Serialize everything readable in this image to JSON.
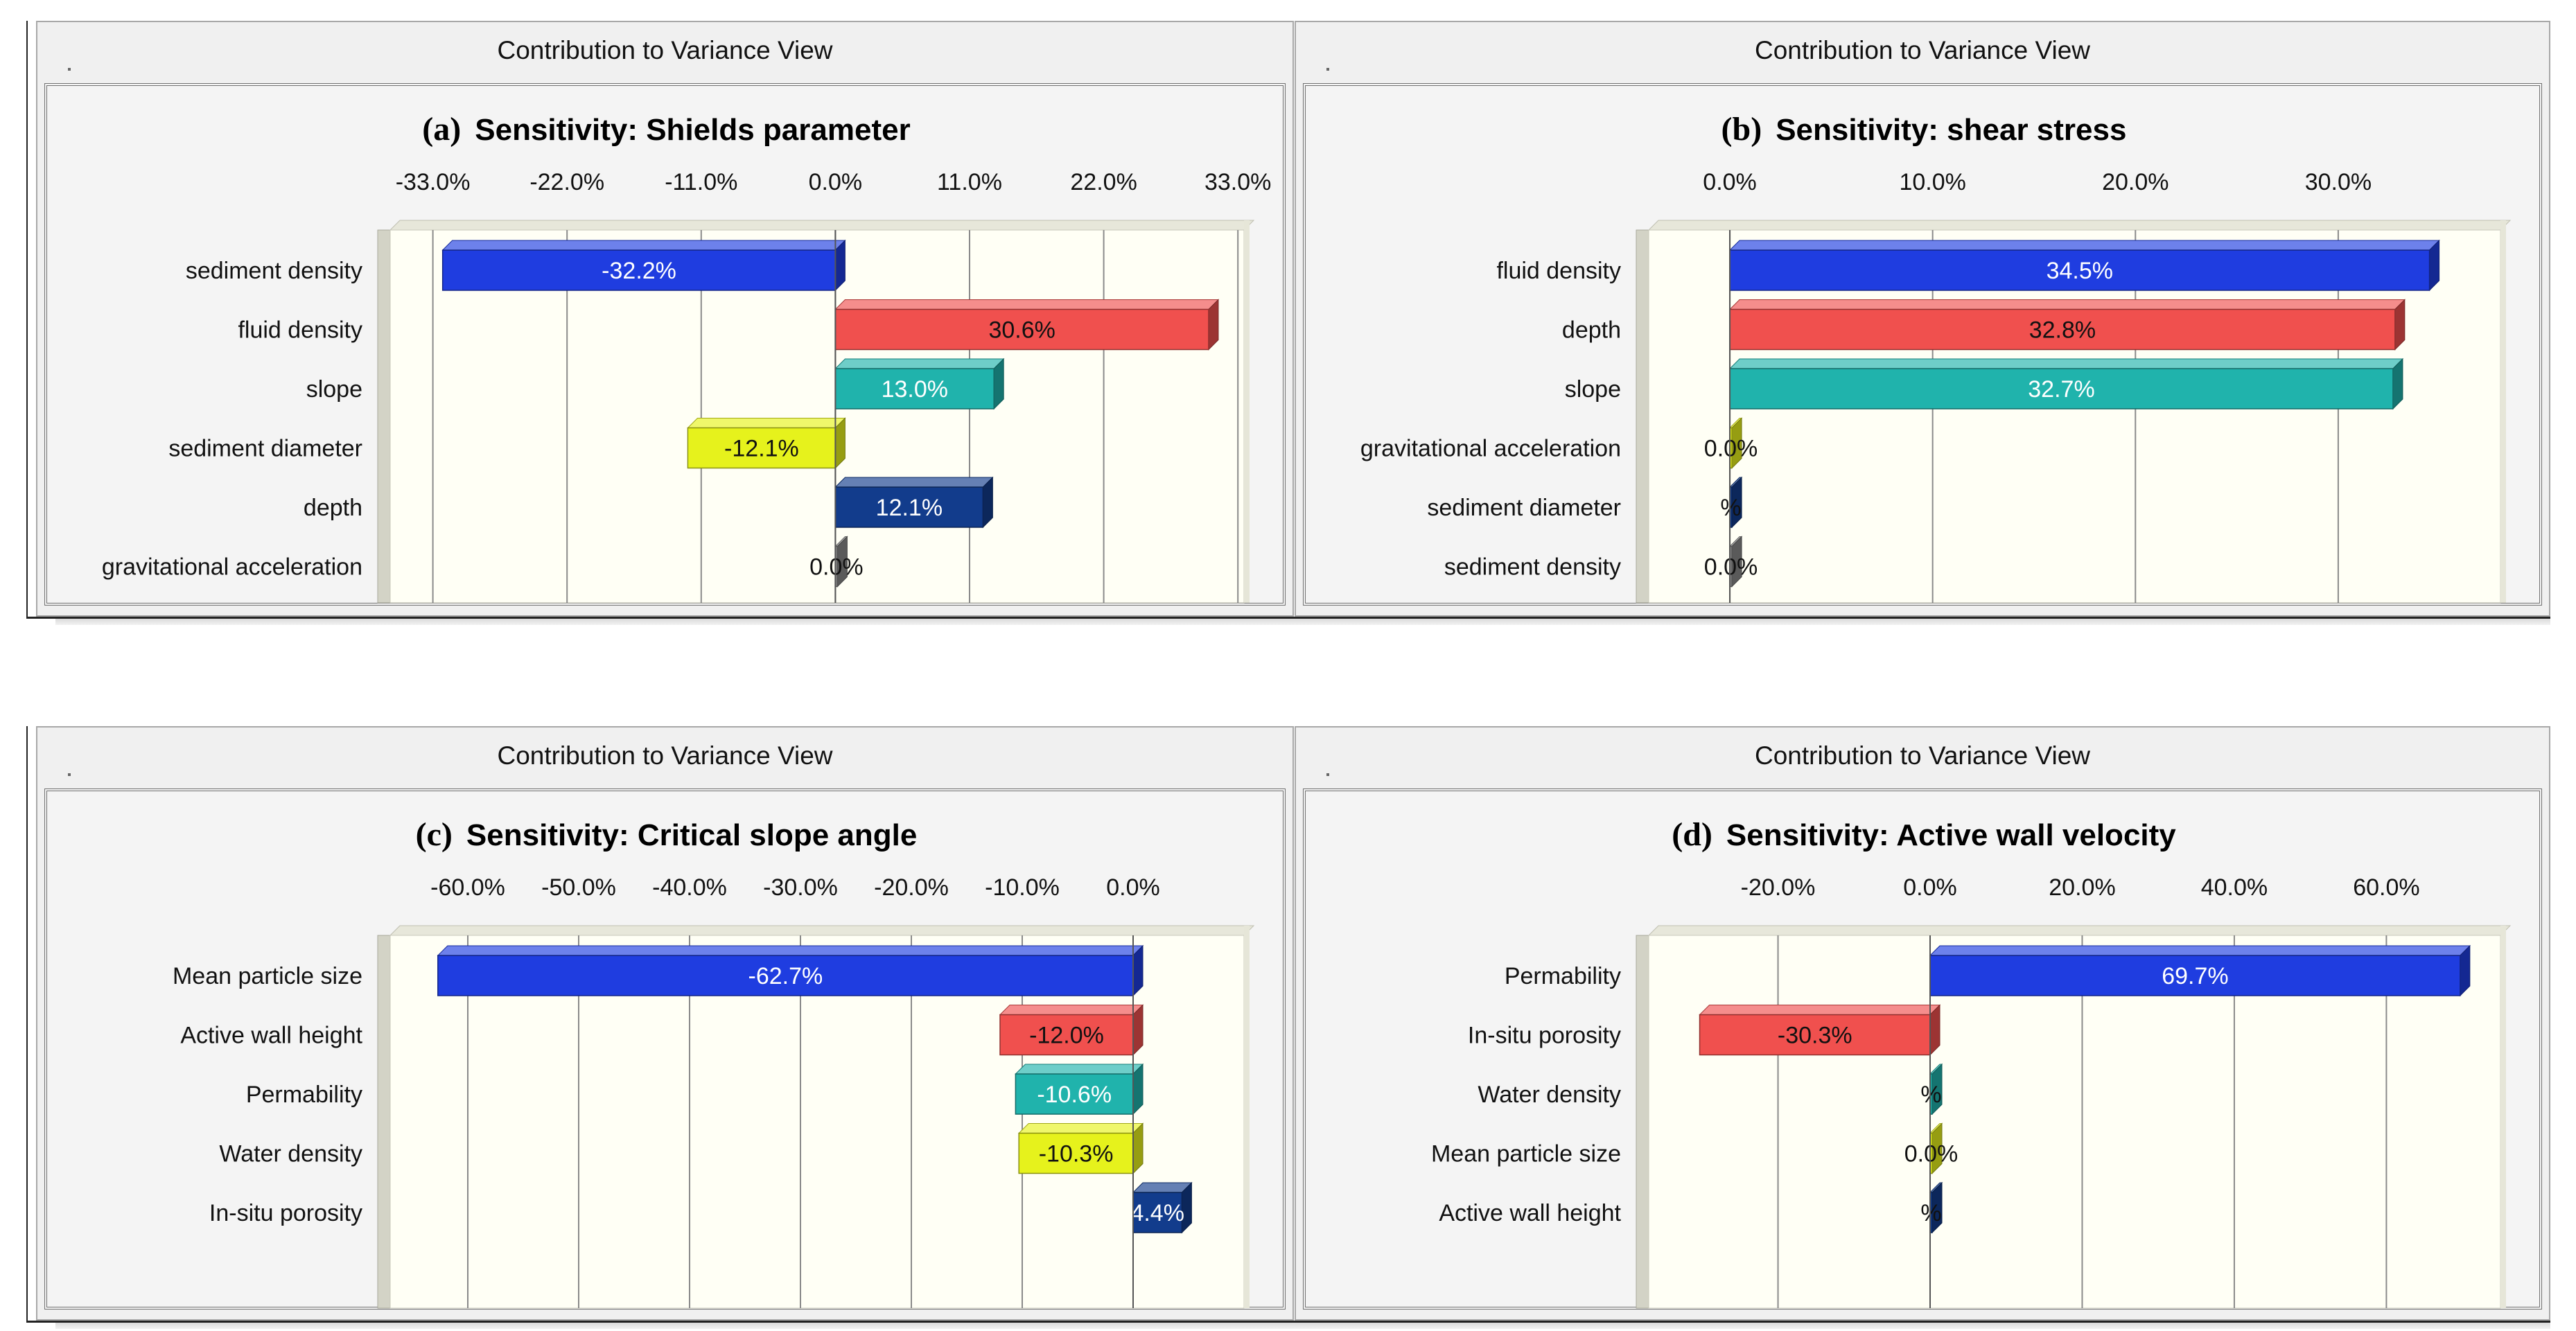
{
  "window_title": "Contribution to Variance View",
  "colors": {
    "blue": "#1f3de0",
    "red": "#f0504e",
    "teal": "#20b3ac",
    "yellow": "#e6f21c",
    "navy": "#123c8c",
    "gray": "#8a8a8a",
    "plot_bg": "#fffff5"
  },
  "chart_data": [
    {
      "type": "bar",
      "orientation": "horizontal",
      "panel_letter": "(a)",
      "title": "Sensitivity: Shields parameter",
      "xlim": [
        -36.5,
        33.5
      ],
      "ticks": [
        -33,
        -22,
        -11,
        0,
        11,
        22,
        33
      ],
      "tick_labels": [
        "-33.0%",
        "-22.0%",
        "-11.0%",
        "0.0%",
        "11.0%",
        "22.0%",
        "33.0%"
      ],
      "categories": [
        "sediment density",
        "fluid density",
        "slope",
        "sediment diameter",
        "depth",
        "gravitational acceleration"
      ],
      "values": [
        -32.2,
        30.6,
        13.0,
        -12.1,
        12.1,
        0.0
      ],
      "data_labels": [
        "-32.2%",
        "30.6%",
        "13.0%",
        "-12.1%",
        "12.1%",
        "0.0%"
      ],
      "bar_colors": [
        "blue",
        "red",
        "teal",
        "yellow",
        "navy",
        "gray"
      ]
    },
    {
      "type": "bar",
      "orientation": "horizontal",
      "panel_letter": "(b)",
      "title": "Sensitivity: shear stress",
      "xlim": [
        -4,
        38
      ],
      "ticks": [
        0,
        10,
        20,
        30
      ],
      "tick_labels": [
        "0.0%",
        "10.0%",
        "20.0%",
        "30.0%"
      ],
      "categories": [
        "fluid density",
        "depth",
        "slope",
        "gravitational acceleration",
        "sediment diameter",
        "sediment density"
      ],
      "values": [
        34.5,
        32.8,
        32.7,
        0.0,
        0.0,
        0.0
      ],
      "data_labels": [
        "34.5%",
        "32.8%",
        "32.7%",
        "0.0%",
        "%",
        "0.0%"
      ],
      "bar_colors": [
        "blue",
        "red",
        "teal",
        "yellow",
        "navy",
        "gray"
      ]
    },
    {
      "type": "bar",
      "orientation": "horizontal",
      "panel_letter": "(c)",
      "title": "Sensitivity: Critical slope angle",
      "xlim": [
        -67,
        10
      ],
      "ticks": [
        -60,
        -50,
        -40,
        -30,
        -20,
        -10,
        0
      ],
      "tick_labels": [
        "-60.0%",
        "-50.0%",
        "-40.0%",
        "-30.0%",
        "-20.0%",
        "-10.0%",
        "0.0%"
      ],
      "categories": [
        "Mean particle size",
        "Active wall height",
        "Permability",
        "Water density",
        "In-situ porosity"
      ],
      "values": [
        -62.7,
        -12.0,
        -10.6,
        -10.3,
        4.4
      ],
      "data_labels": [
        "-62.7%",
        "-12.0%",
        "-10.6%",
        "-10.3%",
        "4.4%"
      ],
      "bar_colors": [
        "blue",
        "red",
        "teal",
        "yellow",
        "navy"
      ]
    },
    {
      "type": "bar",
      "orientation": "horizontal",
      "panel_letter": "(d)",
      "title": "Sensitivity: Active wall velocity",
      "xlim": [
        -37,
        75
      ],
      "ticks": [
        -20,
        0,
        20,
        40,
        60
      ],
      "tick_labels": [
        "-20.0%",
        "0.0%",
        "20.0%",
        "40.0%",
        "60.0%"
      ],
      "categories": [
        "Permability",
        "In-situ porosity",
        "Water density",
        "Mean particle size",
        "Active wall height"
      ],
      "values": [
        69.7,
        -30.3,
        0.0,
        0.0,
        0.0
      ],
      "data_labels": [
        "69.7%",
        "-30.3%",
        "%",
        "0.0%",
        "%"
      ],
      "bar_colors": [
        "blue",
        "red",
        "teal",
        "yellow",
        "navy"
      ]
    }
  ]
}
